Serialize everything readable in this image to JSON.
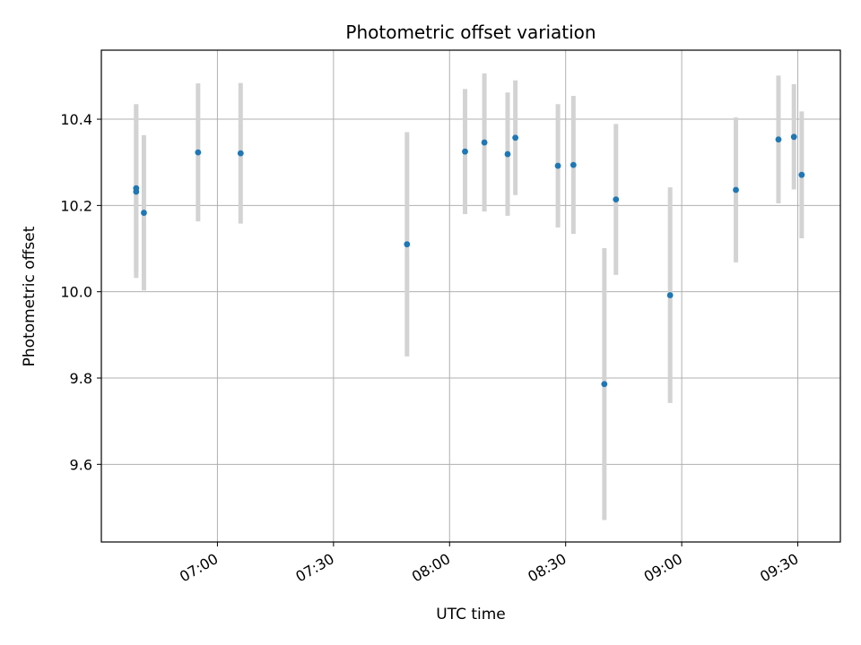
{
  "chart_data": {
    "type": "scatter",
    "title": "Photometric offset variation",
    "xlabel": "UTC time",
    "ylabel": "Photometric offset",
    "x_ticks": [
      "07:00",
      "07:30",
      "08:00",
      "08:30",
      "09:00",
      "09:30"
    ],
    "y_ticks": [
      "9.6",
      "9.8",
      "10.0",
      "10.2",
      "10.4"
    ],
    "xlim": [
      "06:30",
      "09:41"
    ],
    "ylim": [
      9.42,
      10.56
    ],
    "grid": true,
    "colors": {
      "marker": "#1f77b4",
      "errorbar": "#d3d3d3",
      "grid": "#b0b0b0"
    },
    "series": [
      {
        "x": [
          "06:39",
          "06:39",
          "06:41",
          "06:55",
          "07:06",
          "07:49",
          "08:04",
          "08:09",
          "08:15",
          "08:17",
          "08:28",
          "08:32",
          "08:40",
          "08:43",
          "08:57",
          "09:14",
          "09:25",
          "09:29",
          "09:31"
        ],
        "y": [
          10.24,
          10.232,
          10.183,
          10.323,
          10.321,
          10.11,
          10.325,
          10.346,
          10.319,
          10.357,
          10.292,
          10.294,
          9.786,
          10.214,
          9.992,
          10.236,
          10.353,
          10.359,
          10.271
        ],
        "yerr": [
          0.195,
          0.2,
          0.18,
          0.16,
          0.163,
          0.26,
          0.145,
          0.16,
          0.143,
          0.133,
          0.143,
          0.16,
          0.315,
          0.175,
          0.25,
          0.168,
          0.148,
          0.122,
          0.147
        ]
      }
    ]
  }
}
